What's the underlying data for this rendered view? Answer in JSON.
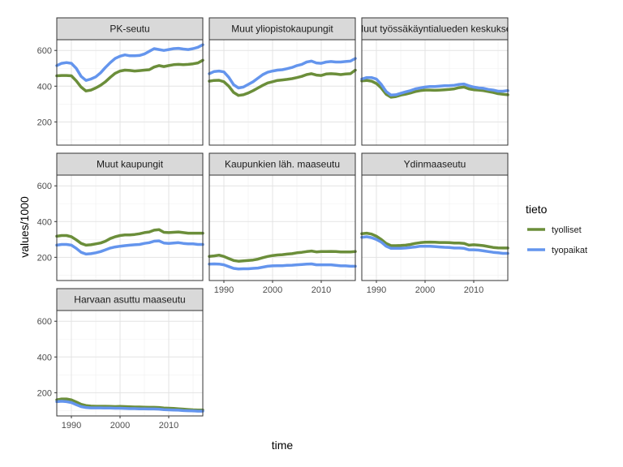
{
  "chart_data": {
    "type": "line",
    "xlabel": "time",
    "ylabel": "values/1000",
    "xlim": [
      1987,
      2017
    ],
    "ylim": [
      70,
      660
    ],
    "x_ticks": [
      1990,
      2000,
      2010
    ],
    "y_ticks": [
      200,
      400,
      600
    ],
    "legend": {
      "title": "tieto",
      "position": "right"
    },
    "grid": true,
    "series_styles": [
      {
        "name": "tyolliset",
        "color": "#6b8e3a"
      },
      {
        "name": "tyopaikat",
        "color": "#6495ed"
      }
    ],
    "x": [
      1987,
      1988,
      1989,
      1990,
      1991,
      1992,
      1993,
      1994,
      1995,
      1996,
      1997,
      1998,
      1999,
      2000,
      2001,
      2002,
      2003,
      2004,
      2005,
      2006,
      2007,
      2008,
      2009,
      2010,
      2011,
      2012,
      2013,
      2014,
      2015,
      2016,
      2017
    ],
    "panels": [
      {
        "title": "PK-seutu",
        "tyolliset": [
          458,
          460,
          460,
          458,
          430,
          395,
          373,
          378,
          390,
          405,
          425,
          450,
          472,
          485,
          490,
          488,
          485,
          487,
          490,
          492,
          507,
          515,
          510,
          515,
          520,
          522,
          520,
          522,
          525,
          530,
          545
        ],
        "tyopaikat": [
          515,
          528,
          532,
          528,
          500,
          455,
          432,
          440,
          452,
          475,
          505,
          532,
          555,
          568,
          575,
          570,
          570,
          572,
          580,
          595,
          610,
          605,
          600,
          605,
          610,
          612,
          608,
          605,
          610,
          618,
          632
        ]
      },
      {
        "title": "Muut yliopistokaupungit",
        "tyolliset": [
          428,
          432,
          433,
          425,
          400,
          365,
          348,
          352,
          362,
          375,
          390,
          405,
          418,
          425,
          432,
          435,
          438,
          442,
          448,
          455,
          465,
          470,
          462,
          460,
          468,
          470,
          468,
          465,
          468,
          470,
          490
        ],
        "tyopaikat": [
          470,
          482,
          485,
          480,
          450,
          408,
          390,
          395,
          410,
          425,
          445,
          465,
          478,
          485,
          490,
          492,
          498,
          505,
          515,
          522,
          535,
          540,
          530,
          528,
          535,
          538,
          535,
          535,
          538,
          540,
          555
        ]
      },
      {
        "title": "Muut työssäkäyntialueden keskukset",
        "tyolliset": [
          430,
          432,
          428,
          415,
          390,
          355,
          338,
          342,
          350,
          355,
          362,
          370,
          375,
          378,
          378,
          377,
          378,
          380,
          382,
          385,
          392,
          395,
          385,
          380,
          378,
          375,
          370,
          365,
          358,
          355,
          352
        ],
        "tyopaikat": [
          440,
          448,
          448,
          440,
          410,
          370,
          350,
          352,
          360,
          368,
          375,
          385,
          390,
          395,
          398,
          398,
          400,
          402,
          403,
          405,
          410,
          412,
          402,
          395,
          390,
          388,
          382,
          378,
          372,
          372,
          375
        ]
      },
      {
        "title": "Muut kaupungit",
        "tyolliset": [
          318,
          322,
          322,
          315,
          298,
          278,
          268,
          270,
          275,
          280,
          290,
          305,
          315,
          322,
          325,
          325,
          328,
          332,
          338,
          342,
          352,
          355,
          340,
          338,
          340,
          342,
          338,
          335,
          335,
          335,
          335
        ],
        "tyopaikat": [
          268,
          272,
          272,
          268,
          250,
          228,
          218,
          220,
          225,
          232,
          242,
          252,
          258,
          262,
          265,
          268,
          270,
          272,
          278,
          282,
          290,
          292,
          280,
          278,
          280,
          282,
          278,
          275,
          275,
          272,
          272
        ]
      },
      {
        "title": "Kaupunkien läh. maaseutu",
        "tyolliset": [
          205,
          208,
          212,
          205,
          193,
          182,
          178,
          180,
          182,
          185,
          190,
          198,
          205,
          210,
          213,
          215,
          218,
          220,
          225,
          228,
          232,
          235,
          230,
          232,
          232,
          233,
          232,
          230,
          230,
          230,
          232
        ],
        "tyopaikat": [
          162,
          163,
          162,
          158,
          148,
          138,
          135,
          136,
          136,
          138,
          140,
          145,
          150,
          152,
          153,
          153,
          155,
          156,
          158,
          160,
          162,
          163,
          158,
          158,
          158,
          158,
          155,
          152,
          152,
          150,
          150
        ]
      },
      {
        "title": "Ydinmaaseutu",
        "tyolliset": [
          332,
          335,
          330,
          318,
          300,
          278,
          265,
          265,
          266,
          268,
          272,
          278,
          282,
          284,
          285,
          284,
          283,
          283,
          282,
          280,
          280,
          278,
          268,
          270,
          268,
          265,
          260,
          255,
          253,
          252,
          252
        ],
        "tyopaikat": [
          312,
          315,
          310,
          300,
          285,
          262,
          250,
          250,
          250,
          252,
          255,
          258,
          262,
          262,
          262,
          260,
          258,
          256,
          255,
          252,
          252,
          250,
          242,
          242,
          240,
          236,
          232,
          228,
          225,
          222,
          222
        ]
      },
      {
        "title": "Harvaan asuttu maaseutu",
        "tyolliset": [
          160,
          165,
          165,
          160,
          148,
          135,
          128,
          125,
          124,
          124,
          124,
          123,
          122,
          123,
          122,
          121,
          120,
          120,
          119,
          118,
          118,
          117,
          114,
          113,
          112,
          110,
          108,
          106,
          104,
          103,
          103
        ],
        "tyopaikat": [
          150,
          152,
          150,
          145,
          133,
          122,
          117,
          115,
          115,
          115,
          114,
          114,
          113,
          113,
          112,
          111,
          111,
          110,
          110,
          109,
          109,
          108,
          105,
          104,
          103,
          102,
          100,
          99,
          98,
          97,
          97
        ]
      }
    ]
  }
}
